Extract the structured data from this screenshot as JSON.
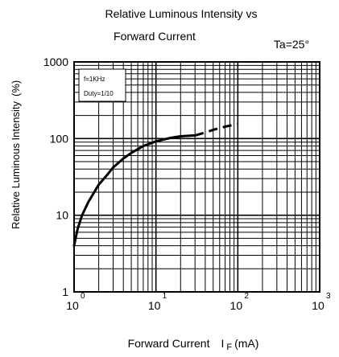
{
  "chart_data": {
    "type": "line",
    "title_line1": "Relative Luminous Intensity vs",
    "title_line2": "Forward Current",
    "condition": "Ta=25°",
    "xlabel": "Forward Current",
    "xlabel_symbol": "I",
    "xlabel_subscript": "F",
    "xlabel_unit": "(mA)",
    "ylabel": "Relative Luminous Intensity",
    "ylabel_unit": "(%)",
    "x_scale": "log",
    "y_scale": "log",
    "xlim": [
      1,
      1000
    ],
    "ylim": [
      1,
      1000
    ],
    "x_ticks": [
      {
        "value": 1,
        "base": "10",
        "exp": "0"
      },
      {
        "value": 10,
        "base": "10",
        "exp": "1"
      },
      {
        "value": 100,
        "base": "10",
        "exp": "2"
      },
      {
        "value": 1000,
        "base": "10",
        "exp": "3"
      }
    ],
    "y_ticks": [
      {
        "value": 1,
        "label": "1"
      },
      {
        "value": 10,
        "label": "10"
      },
      {
        "value": 100,
        "label": "100"
      },
      {
        "value": 1000,
        "label": "1000"
      }
    ],
    "grid": true,
    "legend_lines": [
      "f=1KHz",
      "Duty=1/10"
    ],
    "legend_position": "top-left",
    "series": [
      {
        "style": "solid",
        "x": [
          1.0,
          1.1,
          1.25,
          1.5,
          2,
          2.5,
          3,
          4,
          5,
          7,
          10,
          15,
          20,
          30
        ],
        "y": [
          4.0,
          6.5,
          10,
          15,
          25,
          33,
          42,
          55,
          65,
          80,
          92,
          102,
          107,
          110
        ]
      },
      {
        "style": "dashed",
        "x": [
          30,
          40,
          50,
          70,
          100
        ],
        "y": [
          110,
          120,
          130,
          143,
          155
        ]
      }
    ]
  }
}
